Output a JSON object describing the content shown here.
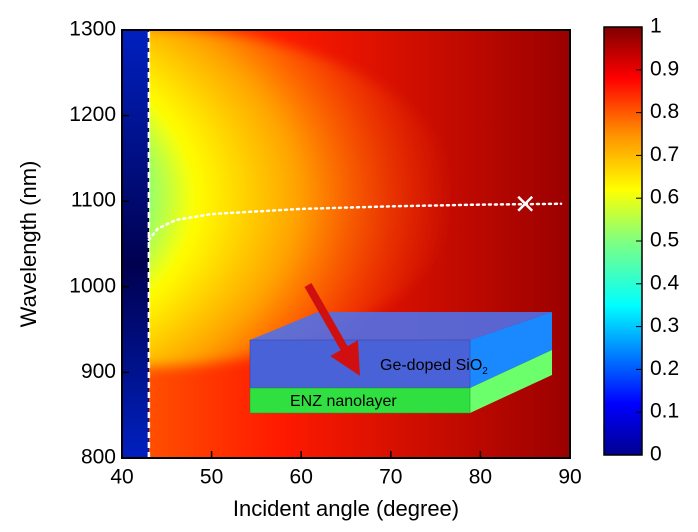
{
  "chart_data": {
    "type": "heatmap",
    "xlabel": "Incident angle (degree)",
    "ylabel": "Wavelength (nm)",
    "xlim": [
      40,
      90
    ],
    "xticks": [
      40,
      50,
      60,
      70,
      80,
      90
    ],
    "ylim": [
      800,
      1300
    ],
    "yticks": [
      800,
      900,
      1000,
      1100,
      1200,
      1300
    ],
    "colorbar": {
      "lim": [
        0,
        1
      ],
      "ticks": [
        0,
        0.1,
        0.2,
        0.3,
        0.4,
        0.5,
        0.6,
        0.7,
        0.8,
        0.9,
        1
      ]
    },
    "lines": [
      {
        "style": "dashed",
        "color": "#ffffff",
        "x": [
          43,
          43
        ],
        "y": [
          800,
          1300
        ]
      },
      {
        "style": "dotted",
        "color": "#ffffff",
        "x": [
          43,
          44,
          46,
          50,
          55,
          60,
          70,
          80,
          89
        ],
        "y": [
          1055,
          1068,
          1078,
          1085,
          1088,
          1091,
          1094,
          1096,
          1097
        ]
      }
    ],
    "marker": {
      "x": 85,
      "y": 1097,
      "color": "#ffffff"
    },
    "inset": {
      "top_label": "Ge-doped SiO",
      "top_label_subscript": "2",
      "bottom_label": "ENZ nanolayer"
    }
  }
}
